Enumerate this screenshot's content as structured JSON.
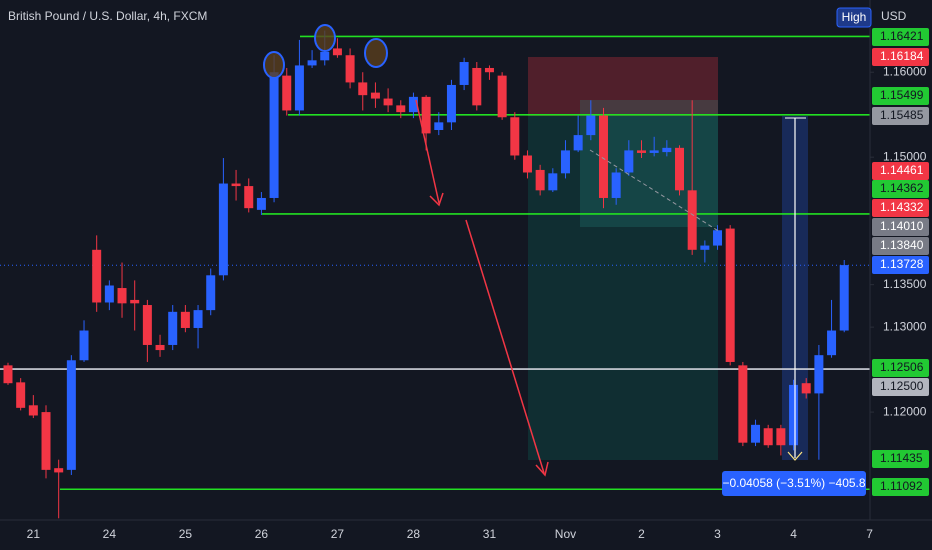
{
  "chart_data": {
    "type": "candlestick",
    "title": "British Pound / U.S. Dollar, 4h, FXCM",
    "currency": "USD",
    "button": "High",
    "up_color": "#2962ff",
    "down_color": "#f23645",
    "open": [
      1.1255,
      1.1235,
      1.1208,
      1.12,
      1.1134,
      1.1132,
      1.1261,
      1.1391,
      1.1329,
      1.1346,
      1.1332,
      1.1326,
      1.1279,
      1.1279,
      1.1318,
      1.1299,
      1.132,
      1.1361,
      1.1469,
      1.1466,
      1.1438,
      1.1452,
      1.1596,
      1.1555,
      1.1608,
      1.1614,
      1.1628,
      1.162,
      1.1588,
      1.1576,
      1.1569,
      1.1561,
      1.1553,
      1.1571,
      1.1532,
      1.1541,
      1.1585,
      1.1605,
      1.1605,
      1.1596,
      1.1547,
      1.1502,
      1.1485,
      1.1461,
      1.1481,
      1.1508,
      1.1526,
      1.1549,
      1.1452,
      1.1482,
      1.1508,
      1.1505,
      1.1506,
      1.1511,
      1.1461,
      1.1391,
      1.1396,
      1.1416,
      1.1255,
      1.1164,
      1.1181,
      1.1181,
      1.1161,
      1.1234,
      1.1222,
      1.1267,
      1.1296
    ],
    "high": [
      1.1258,
      1.124,
      1.122,
      1.1208,
      1.1144,
      1.1267,
      1.1308,
      1.1408,
      1.1355,
      1.1376,
      1.1355,
      1.1332,
      1.1291,
      1.1326,
      1.1326,
      1.1326,
      1.1369,
      1.1499,
      1.1485,
      1.1475,
      1.1459,
      1.162,
      1.1605,
      1.1638,
      1.1626,
      1.1649,
      1.164,
      1.1628,
      1.16,
      1.1588,
      1.1581,
      1.1567,
      1.1576,
      1.1573,
      1.1553,
      1.1591,
      1.1617,
      1.1612,
      1.1608,
      1.16,
      1.1553,
      1.1508,
      1.1491,
      1.1487,
      1.152,
      1.1549,
      1.1567,
      1.1558,
      1.1487,
      1.152,
      1.152,
      1.1524,
      1.152,
      1.1514,
      1.1567,
      1.1402,
      1.142,
      1.142,
      1.1259,
      1.1191,
      1.1185,
      1.1185,
      1.1238,
      1.124,
      1.1279,
      1.1332,
      1.1379
    ],
    "low": [
      1.1232,
      1.1202,
      1.1193,
      1.1122,
      1.1075,
      1.1126,
      1.1259,
      1.1318,
      1.132,
      1.1311,
      1.1296,
      1.1259,
      1.1265,
      1.1273,
      1.1294,
      1.1275,
      1.1314,
      1.1355,
      1.1449,
      1.1435,
      1.1432,
      1.1447,
      1.1549,
      1.1549,
      1.1605,
      1.1608,
      1.1617,
      1.1581,
      1.1555,
      1.1558,
      1.1553,
      1.1546,
      1.1546,
      1.1508,
      1.1526,
      1.1532,
      1.1579,
      1.1555,
      1.1591,
      1.1544,
      1.1497,
      1.1475,
      1.1455,
      1.1459,
      1.1475,
      1.1506,
      1.152,
      1.144,
      1.1444,
      1.1478,
      1.1499,
      1.1501,
      1.1501,
      1.1455,
      1.1385,
      1.1376,
      1.1391,
      1.1255,
      1.116,
      1.116,
      1.1158,
      1.1149,
      1.1155,
      1.1216,
      1.1144,
      1.1264,
      1.1294
    ],
    "close": [
      1.1234,
      1.1205,
      1.1196,
      1.1132,
      1.1129,
      1.1261,
      1.1296,
      1.1329,
      1.1349,
      1.1328,
      1.1328,
      1.1279,
      1.1273,
      1.1318,
      1.1299,
      1.132,
      1.1361,
      1.1469,
      1.1466,
      1.144,
      1.1452,
      1.16,
      1.1555,
      1.1608,
      1.1614,
      1.1624,
      1.162,
      1.1588,
      1.1573,
      1.1569,
      1.1561,
      1.1553,
      1.1571,
      1.1528,
      1.1541,
      1.1585,
      1.1612,
      1.1561,
      1.16,
      1.1547,
      1.1502,
      1.1482,
      1.1461,
      1.1481,
      1.1508,
      1.1526,
      1.1549,
      1.1452,
      1.1482,
      1.1508,
      1.1505,
      1.1508,
      1.1511,
      1.1461,
      1.1391,
      1.1396,
      1.1414,
      1.1259,
      1.1164,
      1.1185,
      1.1161,
      1.1161,
      1.1232,
      1.1222,
      1.1267,
      1.1296,
      1.1373
    ],
    "ylim": [
      1.1073,
      1.1685
    ],
    "yticks": [
      {
        "value": 1.16,
        "label": "1.16000"
      },
      {
        "value": 1.15,
        "label": "1.15000"
      },
      {
        "value": 1.135,
        "label": "1.13500"
      },
      {
        "value": 1.13,
        "label": "1.13000"
      },
      {
        "value": 1.12,
        "label": "1.12000"
      }
    ],
    "x_labels": [
      "21",
      "24",
      "25",
      "26",
      "27",
      "28",
      "31",
      "Nov",
      "2",
      "3",
      "4",
      "7"
    ],
    "levels": [
      {
        "value": 1.16421,
        "color": "#22e022"
      },
      {
        "value": 1.15499,
        "color": "#22e022"
      },
      {
        "value": 1.14332,
        "color": "#22e022"
      },
      {
        "value": 1.12506,
        "color": "#d1d4dc"
      },
      {
        "value": 1.11092,
        "color": "#22e022"
      },
      {
        "value": 1.13728,
        "color": "#2962ff"
      }
    ],
    "price_tags": [
      {
        "value": 1.16421,
        "color": "#22c933"
      },
      {
        "value": 1.16184,
        "color": "#f23645"
      },
      {
        "value": 1.15499,
        "color": "#22c933"
      },
      {
        "value": 1.15485,
        "color": "#9598a1"
      },
      {
        "value": 1.14461,
        "color": "#f23645"
      },
      {
        "value": 1.14362,
        "color": "#22c933"
      },
      {
        "value": 1.14332,
        "color": "#f23645"
      },
      {
        "value": 1.1401,
        "label": "1.14010",
        "color": "#787b86"
      },
      {
        "value": 1.1384,
        "label": "1.13840",
        "color": "#787b86"
      },
      {
        "value": 1.13728,
        "color": "#2962ff"
      },
      {
        "value": 1.12506,
        "color": "#22c933"
      },
      {
        "value": 1.125,
        "label": "1.12500",
        "color": "#b2b5be"
      },
      {
        "value": 1.11435,
        "color": "#22c933"
      },
      {
        "value": 1.11092,
        "color": "#22c933"
      }
    ],
    "measure_label": "−0.04058 (−3.51%) −405.8"
  }
}
